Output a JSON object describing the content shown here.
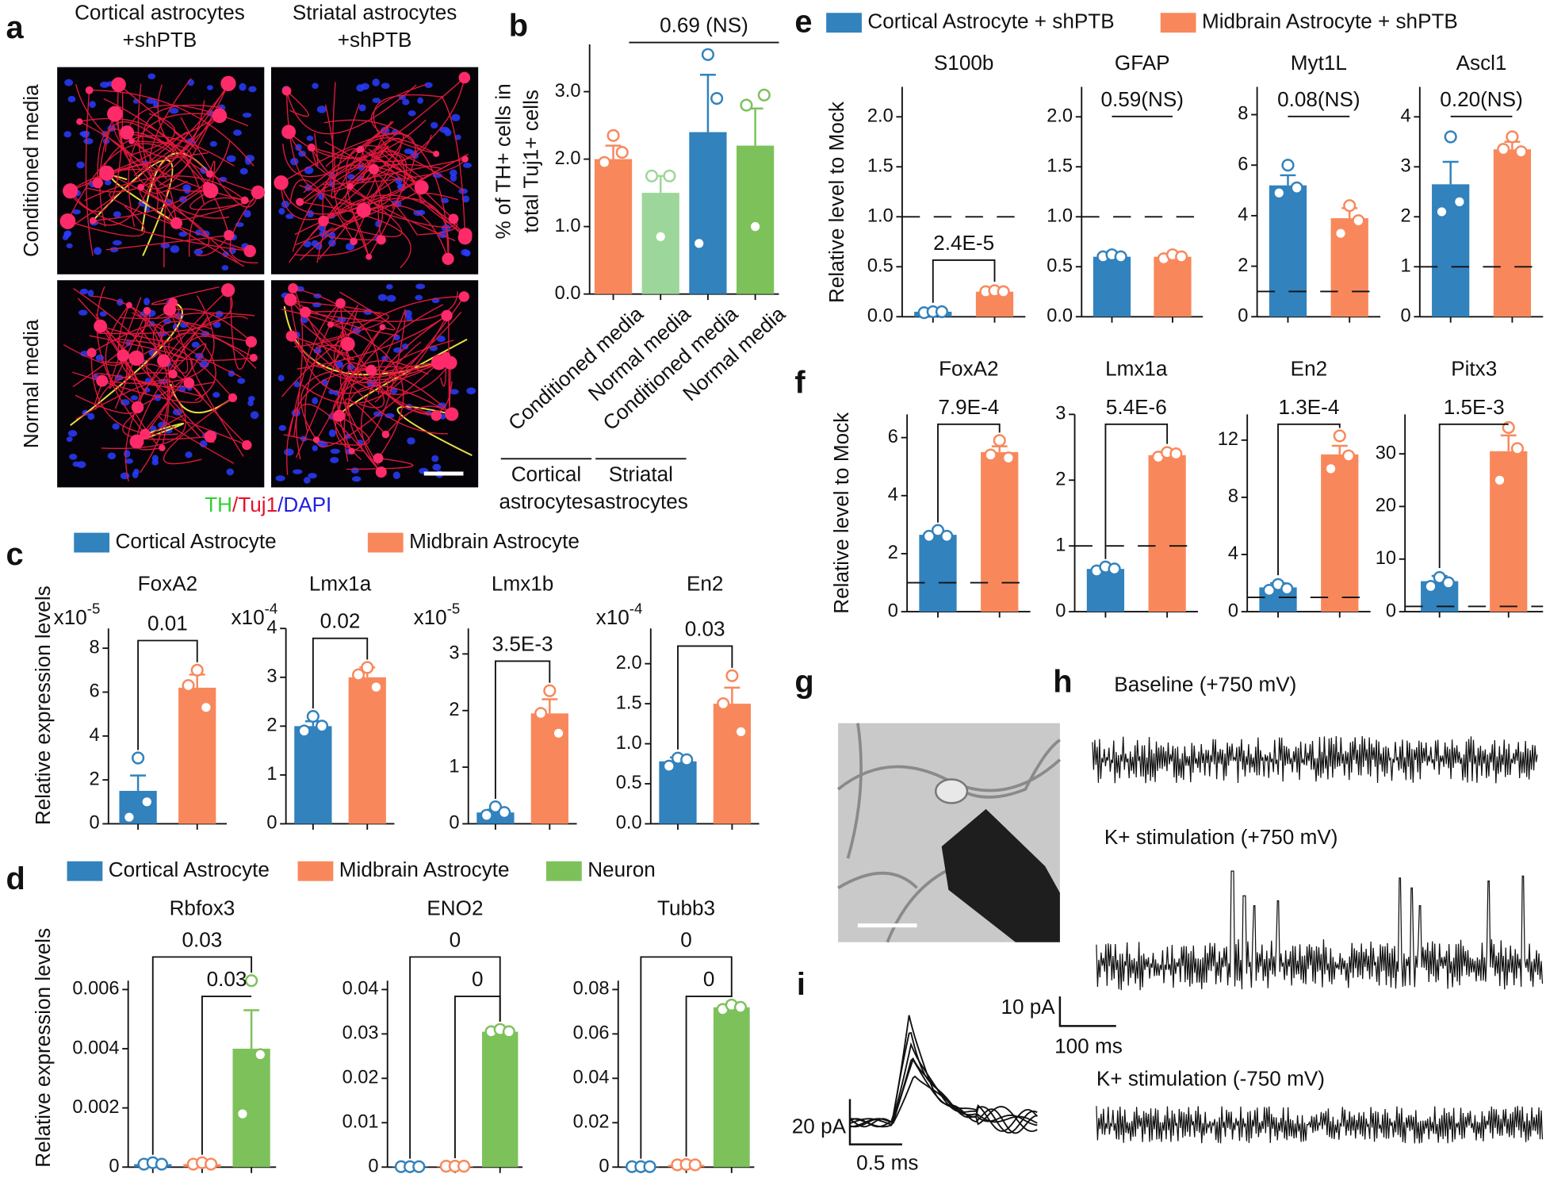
{
  "panel_labels": [
    "a",
    "b",
    "c",
    "d",
    "e",
    "f",
    "g",
    "h",
    "i"
  ],
  "panel_a": {
    "columns": [
      [
        "Cortical astrocytes",
        "+shPTB"
      ],
      [
        "Striatal astrocytes",
        "+shPTB"
      ]
    ],
    "rows": [
      "Conditioned media",
      "Normal media"
    ],
    "caption": [
      {
        "text": "TH",
        "color": "#2fd02f"
      },
      {
        "text": "/Tuj1",
        "color": "#e8102a"
      },
      {
        "text": "/DAPI",
        "color": "#2020e0"
      }
    ]
  },
  "legends": {
    "c": [
      {
        "name": "Cortical Astrocyte",
        "color": "#3182bd"
      },
      {
        "name": "Midbrain Astrocyte",
        "color": "#f8885b"
      }
    ],
    "d": [
      {
        "name": "Cortical Astrocyte",
        "color": "#3182bd"
      },
      {
        "name": "Midbrain Astrocyte",
        "color": "#f8885b"
      },
      {
        "name": "Neuron",
        "color": "#7dc15b"
      }
    ],
    "e": [
      {
        "name": "Cortical Astrocyte + shPTB",
        "color": "#3182bd"
      },
      {
        "name": "Midbrain Astrocyte + shPTB",
        "color": "#f8885b"
      }
    ]
  },
  "ylabels": {
    "c": "Relative expression levels",
    "d": "Relative expression levels",
    "e": "Relative level to Mock",
    "f": "Relative level to Mock"
  },
  "panel_h": {
    "traces": [
      "Baseline (+750 mV)",
      "K+ stimulation (+750 mV)",
      "K+ stimulation (-750 mV)"
    ],
    "scale_y": "10 pA",
    "scale_x": "100 ms"
  },
  "panel_i": {
    "scale_y": "20 pA",
    "scale_x": "0.5 ms"
  },
  "chart_data": [
    {
      "type": "bar",
      "ylabel": [
        "% of TH+ cells in",
        "total Tuj1+ cells"
      ],
      "categories": [
        "Conditioned media",
        "Normal media",
        "Conditioned media",
        "Normal media"
      ],
      "groups": [
        [
          "Cortical",
          "astrocytes"
        ],
        [
          "Striatal",
          "astrocytes"
        ]
      ],
      "ylim": [
        0,
        3.7
      ],
      "yticks": [
        {
          "value": 0,
          "label": "0.0"
        },
        {
          "value": 1,
          "label": "1.0"
        },
        {
          "value": 2,
          "label": "2.0"
        },
        {
          "value": 3,
          "label": "3.0"
        }
      ],
      "bars": [
        {
          "color": "#f8885b",
          "value": 2.0,
          "error": 0.2,
          "points": [
            1.95,
            2.35,
            2.1
          ]
        },
        {
          "color": "#9dd69a",
          "value": 1.5,
          "error": 0.25,
          "points": [
            1.75,
            0.85,
            1.75
          ]
        },
        {
          "color": "#3182bd",
          "value": 2.4,
          "error": 0.85,
          "points": [
            0.75,
            3.55,
            2.9
          ]
        },
        {
          "color": "#7dc15b",
          "value": 2.2,
          "error": 0.55,
          "points": [
            2.8,
            1.0,
            2.95
          ]
        }
      ],
      "comparisons": [
        "0.69 (NS)"
      ],
      "bracket_drops": false
    },
    {
      "type": "bar",
      "title": "FoxA2",
      "y_scale": {
        "base": "x10",
        "exponent": "-5"
      },
      "ylim": [
        0,
        8.9
      ],
      "yticks": [
        0,
        2,
        4,
        6,
        8
      ],
      "bars": [
        {
          "color": "#3182bd",
          "value": 1.5,
          "error": 0.7,
          "points": [
            0.3,
            3.0,
            1.0
          ]
        },
        {
          "color": "#f8885b",
          "value": 6.2,
          "error": 0.6,
          "points": [
            6.3,
            7.0,
            5.3
          ]
        }
      ],
      "comparisons": [
        "0.01"
      ]
    },
    {
      "type": "bar",
      "title": "Lmx1a",
      "y_scale": {
        "base": "x10",
        "exponent": "-4"
      },
      "ylim": [
        0,
        4
      ],
      "yticks": [
        0,
        1,
        2,
        3,
        4
      ],
      "bars": [
        {
          "color": "#3182bd",
          "value": 2.0,
          "error": 0.1,
          "points": [
            1.9,
            2.2,
            2.0
          ]
        },
        {
          "color": "#f8885b",
          "value": 3.0,
          "error": 0.2,
          "points": [
            3.05,
            3.2,
            2.8
          ]
        }
      ],
      "comparisons": [
        "0.02"
      ]
    },
    {
      "type": "bar",
      "title": "Lmx1b",
      "y_scale": {
        "base": "x10",
        "exponent": "-5"
      },
      "ylim": [
        0,
        3.45
      ],
      "yticks": [
        0,
        1,
        2,
        3
      ],
      "bars": [
        {
          "color": "#3182bd",
          "value": 0.2,
          "error": 0.05,
          "points": [
            0.15,
            0.3,
            0.2
          ]
        },
        {
          "color": "#f8885b",
          "value": 1.95,
          "error": 0.25,
          "points": [
            1.95,
            2.35,
            1.6
          ]
        }
      ],
      "comparisons": [
        "3.5E-3"
      ]
    },
    {
      "type": "bar",
      "title": "En2",
      "y_scale": {
        "base": "x10",
        "exponent": "-4"
      },
      "ylim": [
        0,
        2.44
      ],
      "yticks": [
        {
          "value": 0,
          "label": "0.0"
        },
        0.5,
        {
          "value": 1,
          "label": "1.0"
        },
        1.5,
        {
          "value": 2,
          "label": "2.0"
        }
      ],
      "bars": [
        {
          "color": "#3182bd",
          "value": 0.78,
          "error": 0.05,
          "points": [
            0.72,
            0.82,
            0.8
          ]
        },
        {
          "color": "#f8885b",
          "value": 1.5,
          "error": 0.2,
          "points": [
            1.5,
            1.85,
            1.15
          ]
        }
      ],
      "comparisons": [
        "0.03"
      ]
    },
    {
      "type": "bar",
      "title": "Rbfox3",
      "ylim": [
        0,
        0.0063
      ],
      "yticks": [
        0,
        0.002,
        0.004,
        0.006
      ],
      "bars": [
        {
          "color": "#3182bd",
          "value": 0.0001,
          "error": 3e-05,
          "points": [
            0.0001,
            0.00015,
            0.0001
          ]
        },
        {
          "color": "#f8885b",
          "value": 0.0001,
          "error": 3e-05,
          "points": [
            0.0001,
            0.00015,
            0.0001
          ]
        },
        {
          "color": "#7dc15b",
          "value": 0.004,
          "error": 0.0013,
          "points": [
            0.0018,
            0.0063,
            0.0038
          ]
        }
      ],
      "comparisons": [
        "0.03",
        "0.03"
      ]
    },
    {
      "type": "bar",
      "title": "ENO2",
      "ylim": [
        0,
        0.042
      ],
      "yticks": [
        0,
        0.01,
        0.02,
        0.03,
        0.04
      ],
      "bars": [
        {
          "color": "#3182bd",
          "value": 0.0001,
          "error": 2e-05,
          "points": [
            0.0001,
            0.0001,
            0.0001
          ]
        },
        {
          "color": "#f8885b",
          "value": 0.0002,
          "error": 2e-05,
          "points": [
            0.0002,
            0.0002,
            0.0002
          ]
        },
        {
          "color": "#7dc15b",
          "value": 0.0305,
          "error": 0.0003,
          "points": [
            0.0305,
            0.031,
            0.0305
          ]
        }
      ],
      "comparisons": [
        "0",
        "0"
      ]
    },
    {
      "type": "bar",
      "title": "Tubb3",
      "ylim": [
        0,
        0.084
      ],
      "yticks": [
        0,
        0.02,
        0.04,
        0.06,
        0.08
      ],
      "bars": [
        {
          "color": "#3182bd",
          "value": 0.0002,
          "error": 5e-05,
          "points": [
            0.0002,
            0.0002,
            0.0002
          ]
        },
        {
          "color": "#f8885b",
          "value": 0.001,
          "error": 0.0001,
          "points": [
            0.001,
            0.0012,
            0.001
          ]
        },
        {
          "color": "#7dc15b",
          "value": 0.072,
          "error": 0.001,
          "points": [
            0.071,
            0.073,
            0.072
          ]
        }
      ],
      "comparisons": [
        "0",
        "0"
      ]
    },
    {
      "type": "bar",
      "title": "S100b",
      "ylim": [
        0,
        2.3
      ],
      "ref_line": 1,
      "yticks": [
        {
          "value": 0,
          "label": "0.0"
        },
        0.5,
        {
          "value": 1,
          "label": "1.0"
        },
        1.5,
        {
          "value": 2,
          "label": "2.0"
        }
      ],
      "bars": [
        {
          "color": "#3182bd",
          "value": 0.05,
          "error": 0.01,
          "points": [
            0.04,
            0.05,
            0.05
          ]
        },
        {
          "color": "#f8885b",
          "value": 0.25,
          "error": 0.02,
          "points": [
            0.25,
            0.26,
            0.25
          ]
        }
      ],
      "comparisons": [
        "2.4E-5"
      ]
    },
    {
      "type": "bar",
      "title": "GFAP",
      "ylim": [
        0,
        2.3
      ],
      "ref_line": 1,
      "yticks": [
        {
          "value": 0,
          "label": "0.0"
        },
        0.5,
        {
          "value": 1,
          "label": "1.0"
        },
        1.5,
        {
          "value": 2,
          "label": "2.0"
        }
      ],
      "bars": [
        {
          "color": "#3182bd",
          "value": 0.6,
          "error": 0.02,
          "points": [
            0.6,
            0.62,
            0.6
          ]
        },
        {
          "color": "#f8885b",
          "value": 0.6,
          "error": 0.02,
          "points": [
            0.58,
            0.62,
            0.6
          ]
        }
      ],
      "comparisons": [
        "0.59(NS)"
      ],
      "bracket_drops": false
    },
    {
      "type": "bar",
      "title": "Myt1L",
      "ylim": [
        0,
        9.1
      ],
      "ref_line": 1,
      "yticks": [
        0,
        2,
        4,
        6,
        8
      ],
      "bars": [
        {
          "color": "#3182bd",
          "value": 5.2,
          "error": 0.4,
          "points": [
            4.9,
            6.0,
            5.1
          ]
        },
        {
          "color": "#f8885b",
          "value": 3.9,
          "error": 0.4,
          "points": [
            3.3,
            4.4,
            3.8
          ]
        }
      ],
      "comparisons": [
        "0.08(NS)"
      ],
      "bracket_drops": false
    },
    {
      "type": "bar",
      "title": "Ascl1",
      "ylim": [
        0,
        4.6
      ],
      "ref_line": 1,
      "yticks": [
        0,
        1,
        2,
        3,
        4
      ],
      "bars": [
        {
          "color": "#3182bd",
          "value": 2.65,
          "error": 0.45,
          "points": [
            2.1,
            3.6,
            2.3
          ]
        },
        {
          "color": "#f8885b",
          "value": 3.35,
          "error": 0.15,
          "points": [
            3.35,
            3.6,
            3.3
          ]
        }
      ],
      "comparisons": [
        "0.20(NS)"
      ],
      "bracket_drops": false
    },
    {
      "type": "bar",
      "title": "FoxA2",
      "ylim": [
        0,
        6.8
      ],
      "ref_line": 1,
      "yticks": [
        0,
        2,
        4,
        6
      ],
      "bars": [
        {
          "color": "#3182bd",
          "value": 2.65,
          "error": 0.1,
          "points": [
            2.6,
            2.8,
            2.6
          ]
        },
        {
          "color": "#f8885b",
          "value": 5.5,
          "error": 0.2,
          "points": [
            5.4,
            5.9,
            5.3
          ]
        }
      ],
      "comparisons": [
        "7.9E-4"
      ]
    },
    {
      "type": "bar",
      "title": "Lmx1a",
      "ylim": [
        0,
        3
      ],
      "ref_line": 1,
      "yticks": [
        0,
        1,
        2,
        3
      ],
      "bars": [
        {
          "color": "#3182bd",
          "value": 0.65,
          "error": 0.02,
          "points": [
            0.62,
            0.68,
            0.65
          ]
        },
        {
          "color": "#f8885b",
          "value": 2.38,
          "error": 0.05,
          "points": [
            2.35,
            2.42,
            2.4
          ]
        }
      ],
      "comparisons": [
        "5.4E-6"
      ]
    },
    {
      "type": "bar",
      "title": "En2",
      "ylim": [
        0,
        13.8
      ],
      "ref_line": 1,
      "yticks": [
        0,
        4,
        8,
        12
      ],
      "bars": [
        {
          "color": "#3182bd",
          "value": 1.7,
          "error": 0.3,
          "points": [
            1.5,
            1.9,
            1.6
          ]
        },
        {
          "color": "#f8885b",
          "value": 11.0,
          "error": 0.6,
          "points": [
            10.0,
            12.3,
            10.9
          ]
        }
      ],
      "comparisons": [
        "1.3E-4"
      ]
    },
    {
      "type": "bar",
      "title": "Pitx3",
      "ylim": [
        0,
        37.5
      ],
      "ref_line": 1,
      "yticks": [
        0,
        10,
        20,
        30
      ],
      "bars": [
        {
          "color": "#3182bd",
          "value": 5.8,
          "error": 1.0,
          "points": [
            4.8,
            6.5,
            5.5
          ]
        },
        {
          "color": "#f8885b",
          "value": 30.5,
          "error": 3.0,
          "points": [
            25,
            35,
            31
          ]
        }
      ],
      "comparisons": [
        "1.5E-3"
      ]
    }
  ]
}
